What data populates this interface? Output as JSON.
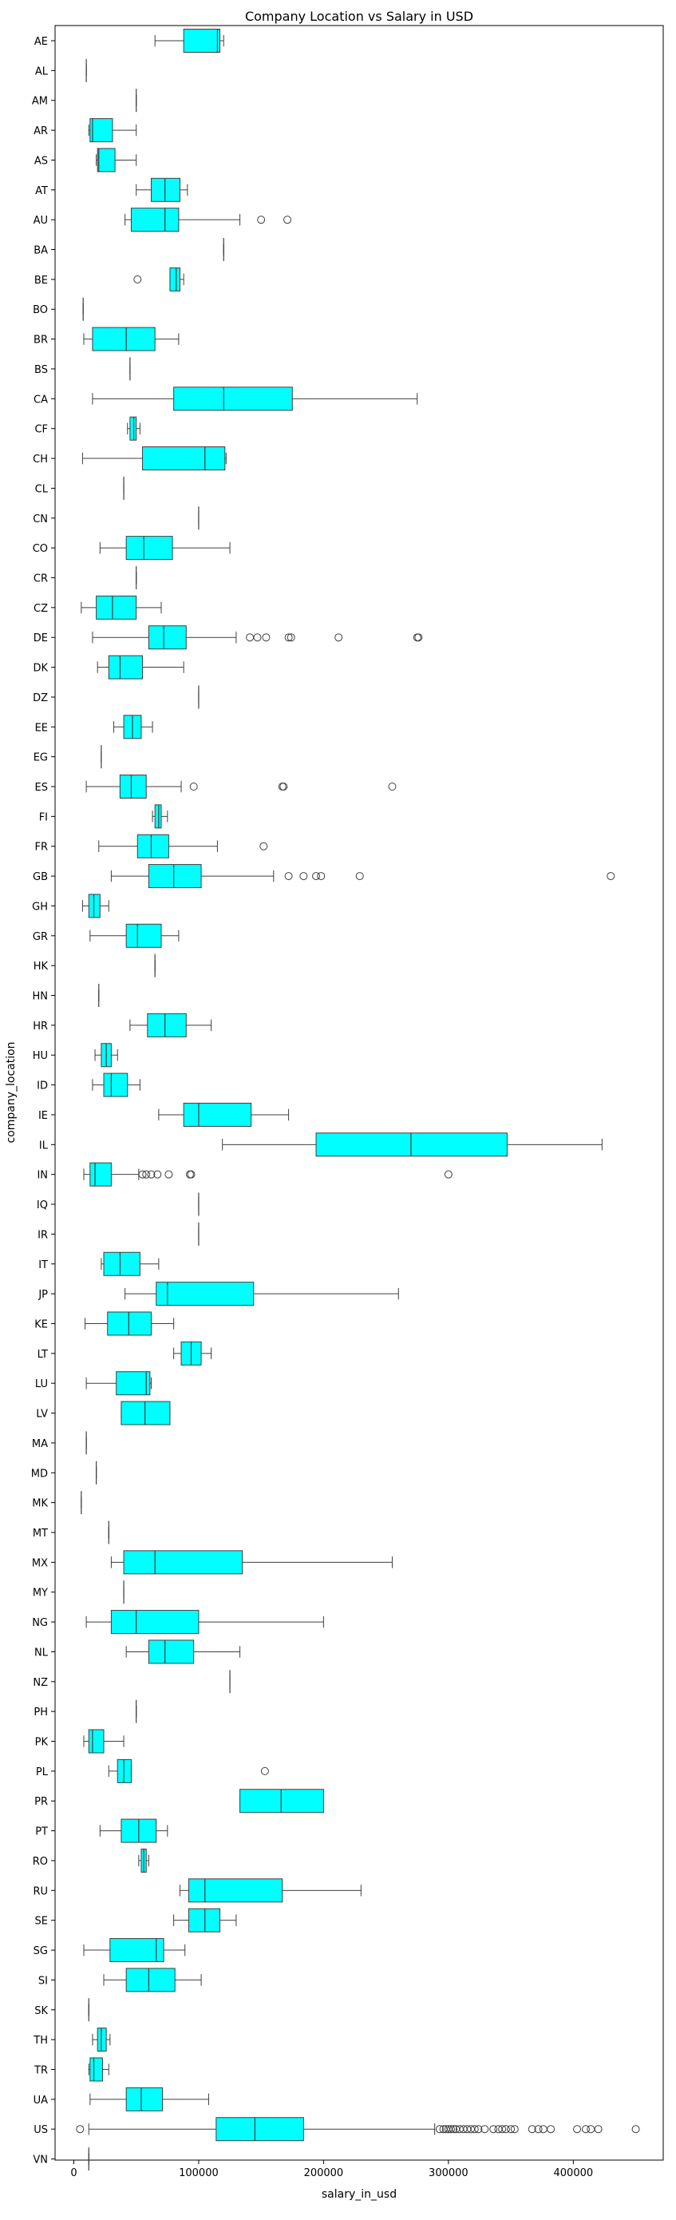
{
  "chart_data": {
    "type": "boxplot",
    "orientation": "horizontal",
    "title": "Company Location vs Salary in USD",
    "xlabel": "salary_in_usd",
    "ylabel": "company_location",
    "xlim": [
      -15000,
      472000
    ],
    "xticks": [
      0,
      100000,
      200000,
      300000,
      400000
    ],
    "box_color": "#00FFFF",
    "line_color": "#3f3f3f",
    "grid": false,
    "categories": [
      {
        "name": "AE",
        "whislo": 65000,
        "q1": 88000,
        "med": 115000,
        "q3": 117000,
        "whishi": 120000,
        "fliers": []
      },
      {
        "name": "AL",
        "whislo": 10000,
        "q1": 10000,
        "med": 10000,
        "q3": 10000,
        "whishi": 10000,
        "fliers": []
      },
      {
        "name": "AM",
        "whislo": 50000,
        "q1": 50000,
        "med": 50000,
        "q3": 50000,
        "whishi": 50000,
        "fliers": []
      },
      {
        "name": "AR",
        "whislo": 12000,
        "q1": 13000,
        "med": 15000,
        "q3": 31000,
        "whishi": 50000,
        "fliers": []
      },
      {
        "name": "AS",
        "whislo": 18000,
        "q1": 19000,
        "med": 20000,
        "q3": 33000,
        "whishi": 50000,
        "fliers": []
      },
      {
        "name": "AT",
        "whislo": 50000,
        "q1": 62000,
        "med": 73000,
        "q3": 85000,
        "whishi": 91000,
        "fliers": []
      },
      {
        "name": "AU",
        "whislo": 41000,
        "q1": 46000,
        "med": 73000,
        "q3": 84000,
        "whishi": 133000,
        "fliers": [
          150000,
          171000
        ]
      },
      {
        "name": "BA",
        "whislo": 120000,
        "q1": 120000,
        "med": 120000,
        "q3": 120000,
        "whishi": 120000,
        "fliers": []
      },
      {
        "name": "BE",
        "whislo": 77000,
        "q1": 77000,
        "med": 82000,
        "q3": 85000,
        "whishi": 88000,
        "fliers": [
          51000
        ]
      },
      {
        "name": "BO",
        "whislo": 7500,
        "q1": 7500,
        "med": 7500,
        "q3": 7500,
        "whishi": 7500,
        "fliers": []
      },
      {
        "name": "BR",
        "whislo": 8000,
        "q1": 15000,
        "med": 42000,
        "q3": 65000,
        "whishi": 84000,
        "fliers": []
      },
      {
        "name": "BS",
        "whislo": 45000,
        "q1": 45000,
        "med": 45000,
        "q3": 45000,
        "whishi": 45000,
        "fliers": []
      },
      {
        "name": "CA",
        "whislo": 15000,
        "q1": 80000,
        "med": 120000,
        "q3": 175000,
        "whishi": 275000,
        "fliers": []
      },
      {
        "name": "CF",
        "whislo": 43000,
        "q1": 45000,
        "med": 48000,
        "q3": 50000,
        "whishi": 53000,
        "fliers": []
      },
      {
        "name": "CH",
        "whislo": 7000,
        "q1": 55000,
        "med": 105000,
        "q3": 121000,
        "whishi": 122000,
        "fliers": []
      },
      {
        "name": "CL",
        "whislo": 40000,
        "q1": 40000,
        "med": 40000,
        "q3": 40000,
        "whishi": 40000,
        "fliers": []
      },
      {
        "name": "CN",
        "whislo": 100000,
        "q1": 100000,
        "med": 100000,
        "q3": 100000,
        "whishi": 100000,
        "fliers": []
      },
      {
        "name": "CO",
        "whislo": 21000,
        "q1": 42000,
        "med": 56000,
        "q3": 79000,
        "whishi": 125000,
        "fliers": []
      },
      {
        "name": "CR",
        "whislo": 50000,
        "q1": 50000,
        "med": 50000,
        "q3": 50000,
        "whishi": 50000,
        "fliers": []
      },
      {
        "name": "CZ",
        "whislo": 6000,
        "q1": 18000,
        "med": 31000,
        "q3": 50000,
        "whishi": 70000,
        "fliers": []
      },
      {
        "name": "DE",
        "whislo": 15000,
        "q1": 60000,
        "med": 72000,
        "q3": 90000,
        "whishi": 130000,
        "fliers": [
          141000,
          147000,
          154000,
          172000,
          174000,
          212000,
          275000,
          276000
        ]
      },
      {
        "name": "DK",
        "whislo": 19000,
        "q1": 28000,
        "med": 37000,
        "q3": 55000,
        "whishi": 88000,
        "fliers": []
      },
      {
        "name": "DZ",
        "whislo": 100000,
        "q1": 100000,
        "med": 100000,
        "q3": 100000,
        "whishi": 100000,
        "fliers": []
      },
      {
        "name": "EE",
        "whislo": 32000,
        "q1": 40000,
        "med": 47000,
        "q3": 54000,
        "whishi": 63000,
        "fliers": []
      },
      {
        "name": "EG",
        "whislo": 22000,
        "q1": 22000,
        "med": 22000,
        "q3": 22000,
        "whishi": 22000,
        "fliers": []
      },
      {
        "name": "ES",
        "whislo": 10000,
        "q1": 37000,
        "med": 46000,
        "q3": 58000,
        "whishi": 86000,
        "fliers": [
          96000,
          167000,
          168000,
          255000
        ]
      },
      {
        "name": "FI",
        "whislo": 63000,
        "q1": 65000,
        "med": 68000,
        "q3": 70000,
        "whishi": 75000,
        "fliers": []
      },
      {
        "name": "FR",
        "whislo": 20000,
        "q1": 51000,
        "med": 62000,
        "q3": 76000,
        "whishi": 115000,
        "fliers": [
          152000
        ]
      },
      {
        "name": "GB",
        "whislo": 30000,
        "q1": 60000,
        "med": 80000,
        "q3": 102000,
        "whishi": 160000,
        "fliers": [
          172000,
          184000,
          194000,
          198000,
          229000,
          430000
        ]
      },
      {
        "name": "GH",
        "whislo": 7000,
        "q1": 12000,
        "med": 16000,
        "q3": 21000,
        "whishi": 28000,
        "fliers": []
      },
      {
        "name": "GR",
        "whislo": 13000,
        "q1": 42000,
        "med": 51000,
        "q3": 70000,
        "whishi": 84000,
        "fliers": []
      },
      {
        "name": "HK",
        "whislo": 65000,
        "q1": 65000,
        "med": 65000,
        "q3": 65000,
        "whishi": 65000,
        "fliers": []
      },
      {
        "name": "HN",
        "whislo": 20000,
        "q1": 20000,
        "med": 20000,
        "q3": 20000,
        "whishi": 20000,
        "fliers": []
      },
      {
        "name": "HR",
        "whislo": 45000,
        "q1": 59000,
        "med": 73000,
        "q3": 90000,
        "whishi": 110000,
        "fliers": []
      },
      {
        "name": "HU",
        "whislo": 17000,
        "q1": 22000,
        "med": 26000,
        "q3": 30000,
        "whishi": 35000,
        "fliers": []
      },
      {
        "name": "ID",
        "whislo": 15000,
        "q1": 24000,
        "med": 30000,
        "q3": 43000,
        "whishi": 53000,
        "fliers": []
      },
      {
        "name": "IE",
        "whislo": 68000,
        "q1": 88000,
        "med": 100000,
        "q3": 142000,
        "whishi": 172000,
        "fliers": []
      },
      {
        "name": "IL",
        "whislo": 119000,
        "q1": 194000,
        "med": 270000,
        "q3": 347000,
        "whishi": 423000,
        "fliers": []
      },
      {
        "name": "IN",
        "whislo": 8000,
        "q1": 13000,
        "med": 17000,
        "q3": 30000,
        "whishi": 52000,
        "fliers": [
          55000,
          58000,
          62000,
          67000,
          76000,
          93000,
          94000,
          300000
        ]
      },
      {
        "name": "IQ",
        "whislo": 100000,
        "q1": 100000,
        "med": 100000,
        "q3": 100000,
        "whishi": 100000,
        "fliers": []
      },
      {
        "name": "IR",
        "whislo": 100000,
        "q1": 100000,
        "med": 100000,
        "q3": 100000,
        "whishi": 100000,
        "fliers": []
      },
      {
        "name": "IT",
        "whislo": 22000,
        "q1": 24000,
        "med": 37000,
        "q3": 53000,
        "whishi": 68000,
        "fliers": []
      },
      {
        "name": "JP",
        "whislo": 41000,
        "q1": 66000,
        "med": 75000,
        "q3": 144000,
        "whishi": 260000,
        "fliers": []
      },
      {
        "name": "KE",
        "whislo": 9000,
        "q1": 27000,
        "med": 44000,
        "q3": 62000,
        "whishi": 80000,
        "fliers": []
      },
      {
        "name": "LT",
        "whislo": 80000,
        "q1": 86000,
        "med": 94000,
        "q3": 102000,
        "whishi": 110000,
        "fliers": []
      },
      {
        "name": "LU",
        "whislo": 10000,
        "q1": 34000,
        "med": 58000,
        "q3": 61000,
        "whishi": 62000,
        "fliers": []
      },
      {
        "name": "LV",
        "whislo": 38000,
        "q1": 38000,
        "med": 57000,
        "q3": 77000,
        "whishi": 77000,
        "fliers": []
      },
      {
        "name": "MA",
        "whislo": 10000,
        "q1": 10000,
        "med": 10000,
        "q3": 10000,
        "whishi": 10000,
        "fliers": []
      },
      {
        "name": "MD",
        "whislo": 18000,
        "q1": 18000,
        "med": 18000,
        "q3": 18000,
        "whishi": 18000,
        "fliers": []
      },
      {
        "name": "MK",
        "whislo": 6000,
        "q1": 6000,
        "med": 6000,
        "q3": 6000,
        "whishi": 6000,
        "fliers": []
      },
      {
        "name": "MT",
        "whislo": 28000,
        "q1": 28000,
        "med": 28000,
        "q3": 28000,
        "whishi": 28000,
        "fliers": []
      },
      {
        "name": "MX",
        "whislo": 30000,
        "q1": 40000,
        "med": 65000,
        "q3": 135000,
        "whishi": 255000,
        "fliers": []
      },
      {
        "name": "MY",
        "whislo": 40000,
        "q1": 40000,
        "med": 40000,
        "q3": 40000,
        "whishi": 40000,
        "fliers": []
      },
      {
        "name": "NG",
        "whislo": 10000,
        "q1": 30000,
        "med": 50000,
        "q3": 100000,
        "whishi": 200000,
        "fliers": []
      },
      {
        "name": "NL",
        "whislo": 42000,
        "q1": 60000,
        "med": 73000,
        "q3": 96000,
        "whishi": 133000,
        "fliers": []
      },
      {
        "name": "NZ",
        "whislo": 125000,
        "q1": 125000,
        "med": 125000,
        "q3": 125000,
        "whishi": 125000,
        "fliers": []
      },
      {
        "name": "PH",
        "whislo": 50000,
        "q1": 50000,
        "med": 50000,
        "q3": 50000,
        "whishi": 50000,
        "fliers": []
      },
      {
        "name": "PK",
        "whislo": 8000,
        "q1": 12000,
        "med": 15000,
        "q3": 24000,
        "whishi": 40000,
        "fliers": []
      },
      {
        "name": "PL",
        "whislo": 28000,
        "q1": 35000,
        "med": 40000,
        "q3": 46000,
        "whishi": 46000,
        "fliers": [
          153000
        ]
      },
      {
        "name": "PR",
        "whislo": 133000,
        "q1": 133000,
        "med": 166000,
        "q3": 200000,
        "whishi": 200000,
        "fliers": []
      },
      {
        "name": "PT",
        "whislo": 21000,
        "q1": 38000,
        "med": 52000,
        "q3": 66000,
        "whishi": 75000,
        "fliers": []
      },
      {
        "name": "RO",
        "whislo": 52000,
        "q1": 54000,
        "med": 56000,
        "q3": 58000,
        "whishi": 60000,
        "fliers": []
      },
      {
        "name": "RU",
        "whislo": 85000,
        "q1": 92000,
        "med": 105000,
        "q3": 167000,
        "whishi": 230000,
        "fliers": []
      },
      {
        "name": "SE",
        "whislo": 80000,
        "q1": 92000,
        "med": 105000,
        "q3": 117000,
        "whishi": 130000,
        "fliers": []
      },
      {
        "name": "SG",
        "whislo": 8000,
        "q1": 29000,
        "med": 66000,
        "q3": 72000,
        "whishi": 89000,
        "fliers": []
      },
      {
        "name": "SI",
        "whislo": 24000,
        "q1": 42000,
        "med": 60000,
        "q3": 81000,
        "whishi": 102000,
        "fliers": []
      },
      {
        "name": "SK",
        "whislo": 12000,
        "q1": 12000,
        "med": 12000,
        "q3": 12000,
        "whishi": 12000,
        "fliers": []
      },
      {
        "name": "TH",
        "whislo": 15000,
        "q1": 19000,
        "med": 22000,
        "q3": 26000,
        "whishi": 29000,
        "fliers": []
      },
      {
        "name": "TR",
        "whislo": 12000,
        "q1": 13000,
        "med": 16000,
        "q3": 23000,
        "whishi": 28000,
        "fliers": []
      },
      {
        "name": "UA",
        "whislo": 13000,
        "q1": 42000,
        "med": 54000,
        "q3": 71000,
        "whishi": 108000,
        "fliers": []
      },
      {
        "name": "US",
        "whislo": 12000,
        "q1": 114000,
        "med": 145000,
        "q3": 184000,
        "whishi": 289000,
        "fliers": [
          5000,
          293000,
          296000,
          298000,
          300000,
          302000,
          304000,
          306000,
          309000,
          312000,
          315000,
          318000,
          321000,
          324000,
          329000,
          336000,
          340000,
          343000,
          346000,
          350000,
          353000,
          367000,
          372000,
          376000,
          382000,
          403000,
          410000,
          414000,
          420000,
          450000
        ]
      },
      {
        "name": "VN",
        "whislo": 12000,
        "q1": 12000,
        "med": 12000,
        "q3": 12000,
        "whishi": 12000,
        "fliers": []
      }
    ]
  }
}
